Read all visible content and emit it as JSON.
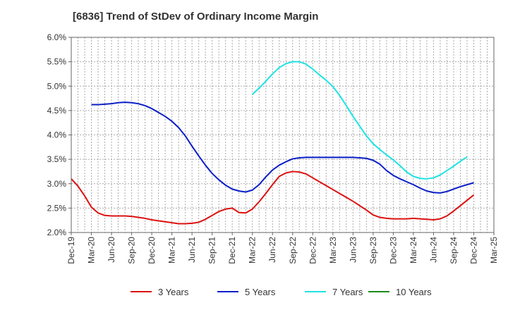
{
  "chart_data": {
    "type": "line",
    "title": "[6836]  Trend of StDev of Ordinary Income Margin",
    "xlabel": "",
    "ylabel": "",
    "ylim": [
      2.0,
      6.0
    ],
    "y_ticks": [
      2.0,
      2.5,
      3.0,
      3.5,
      4.0,
      4.5,
      5.0,
      5.5,
      6.0
    ],
    "y_tick_labels": [
      "2.0%",
      "2.5%",
      "3.0%",
      "3.5%",
      "4.0%",
      "4.5%",
      "5.0%",
      "5.5%",
      "6.0%"
    ],
    "x_tick_labels": [
      "Dec-19",
      "Mar-20",
      "Jun-20",
      "Sep-20",
      "Dec-20",
      "Mar-21",
      "Jun-21",
      "Sep-21",
      "Dec-21",
      "Mar-22",
      "Jun-22",
      "Sep-22",
      "Dec-22",
      "Mar-23",
      "Jun-23",
      "Sep-23",
      "Dec-23",
      "Mar-24",
      "Jun-24",
      "Sep-24",
      "Dec-24",
      "Mar-25"
    ],
    "grid": true,
    "legend_position": "bottom",
    "series": [
      {
        "name": "3 Years",
        "color": "#dd1111",
        "points": [
          [
            "Dec-19",
            3.1
          ],
          [
            "Jan-20",
            2.95
          ],
          [
            "Feb-20",
            2.75
          ],
          [
            "Mar-20",
            2.52
          ],
          [
            "Apr-20",
            2.4
          ],
          [
            "May-20",
            2.35
          ],
          [
            "Jun-20",
            2.34
          ],
          [
            "Jul-20",
            2.34
          ],
          [
            "Aug-20",
            2.34
          ],
          [
            "Sep-20",
            2.33
          ],
          [
            "Oct-20",
            2.31
          ],
          [
            "Nov-20",
            2.29
          ],
          [
            "Dec-20",
            2.26
          ],
          [
            "Jan-21",
            2.24
          ],
          [
            "Feb-21",
            2.22
          ],
          [
            "Mar-21",
            2.2
          ],
          [
            "Apr-21",
            2.18
          ],
          [
            "May-21",
            2.18
          ],
          [
            "Jun-21",
            2.19
          ],
          [
            "Jul-21",
            2.21
          ],
          [
            "Aug-21",
            2.27
          ],
          [
            "Sep-21",
            2.35
          ],
          [
            "Oct-21",
            2.43
          ],
          [
            "Nov-21",
            2.48
          ],
          [
            "Dec-21",
            2.5
          ],
          [
            "Jan-22",
            2.41
          ],
          [
            "Feb-22",
            2.4
          ],
          [
            "Mar-22",
            2.48
          ],
          [
            "Apr-22",
            2.63
          ],
          [
            "May-22",
            2.8
          ],
          [
            "Jun-22",
            2.98
          ],
          [
            "Jul-22",
            3.15
          ],
          [
            "Aug-22",
            3.22
          ],
          [
            "Sep-22",
            3.25
          ],
          [
            "Oct-22",
            3.24
          ],
          [
            "Nov-22",
            3.2
          ],
          [
            "Dec-22",
            3.12
          ],
          [
            "Jan-23",
            3.04
          ],
          [
            "Feb-23",
            2.96
          ],
          [
            "Mar-23",
            2.88
          ],
          [
            "Apr-23",
            2.8
          ],
          [
            "May-23",
            2.72
          ],
          [
            "Jun-23",
            2.64
          ],
          [
            "Jul-23",
            2.55
          ],
          [
            "Aug-23",
            2.46
          ],
          [
            "Sep-23",
            2.36
          ],
          [
            "Oct-23",
            2.31
          ],
          [
            "Nov-23",
            2.29
          ],
          [
            "Dec-23",
            2.28
          ],
          [
            "Jan-24",
            2.28
          ],
          [
            "Feb-24",
            2.28
          ],
          [
            "Mar-24",
            2.29
          ],
          [
            "Apr-24",
            2.28
          ],
          [
            "May-24",
            2.27
          ],
          [
            "Jun-24",
            2.26
          ],
          [
            "Jul-24",
            2.28
          ],
          [
            "Aug-24",
            2.34
          ],
          [
            "Sep-24",
            2.44
          ],
          [
            "Oct-24",
            2.55
          ],
          [
            "Nov-24",
            2.66
          ],
          [
            "Dec-24",
            2.77
          ]
        ]
      },
      {
        "name": "5 Years",
        "color": "#0a1ec8",
        "points": [
          [
            "Mar-20",
            4.62
          ],
          [
            "Apr-20",
            4.62
          ],
          [
            "May-20",
            4.63
          ],
          [
            "Jun-20",
            4.64
          ],
          [
            "Jul-20",
            4.66
          ],
          [
            "Aug-20",
            4.67
          ],
          [
            "Sep-20",
            4.66
          ],
          [
            "Oct-20",
            4.64
          ],
          [
            "Nov-20",
            4.6
          ],
          [
            "Dec-20",
            4.54
          ],
          [
            "Jan-21",
            4.46
          ],
          [
            "Feb-21",
            4.38
          ],
          [
            "Mar-21",
            4.28
          ],
          [
            "Apr-21",
            4.15
          ],
          [
            "May-21",
            3.98
          ],
          [
            "Jun-21",
            3.77
          ],
          [
            "Jul-21",
            3.57
          ],
          [
            "Aug-21",
            3.38
          ],
          [
            "Sep-21",
            3.21
          ],
          [
            "Oct-21",
            3.08
          ],
          [
            "Nov-21",
            2.97
          ],
          [
            "Dec-21",
            2.89
          ],
          [
            "Jan-22",
            2.85
          ],
          [
            "Feb-22",
            2.83
          ],
          [
            "Mar-22",
            2.87
          ],
          [
            "Apr-22",
            2.98
          ],
          [
            "May-22",
            3.14
          ],
          [
            "Jun-22",
            3.28
          ],
          [
            "Jul-22",
            3.38
          ],
          [
            "Aug-22",
            3.45
          ],
          [
            "Sep-22",
            3.51
          ],
          [
            "Oct-22",
            3.53
          ],
          [
            "Nov-22",
            3.54
          ],
          [
            "Dec-22",
            3.54
          ],
          [
            "Jan-23",
            3.54
          ],
          [
            "Feb-23",
            3.54
          ],
          [
            "Mar-23",
            3.54
          ],
          [
            "Apr-23",
            3.54
          ],
          [
            "May-23",
            3.54
          ],
          [
            "Jun-23",
            3.54
          ],
          [
            "Jul-23",
            3.53
          ],
          [
            "Aug-23",
            3.52
          ],
          [
            "Sep-23",
            3.48
          ],
          [
            "Oct-23",
            3.4
          ],
          [
            "Nov-23",
            3.27
          ],
          [
            "Dec-23",
            3.17
          ],
          [
            "Jan-24",
            3.1
          ],
          [
            "Feb-24",
            3.04
          ],
          [
            "Mar-24",
            2.98
          ],
          [
            "Apr-24",
            2.91
          ],
          [
            "May-24",
            2.85
          ],
          [
            "Jun-24",
            2.82
          ],
          [
            "Jul-24",
            2.81
          ],
          [
            "Aug-24",
            2.84
          ],
          [
            "Sep-24",
            2.89
          ],
          [
            "Oct-24",
            2.94
          ],
          [
            "Nov-24",
            2.98
          ],
          [
            "Dec-24",
            3.02
          ]
        ]
      },
      {
        "name": "7 Years",
        "color": "#1ee3e3",
        "points": [
          [
            "Mar-22",
            4.83
          ],
          [
            "Apr-22",
            4.96
          ],
          [
            "May-22",
            5.1
          ],
          [
            "Jun-22",
            5.25
          ],
          [
            "Jul-22",
            5.38
          ],
          [
            "Aug-22",
            5.46
          ],
          [
            "Sep-22",
            5.5
          ],
          [
            "Oct-22",
            5.5
          ],
          [
            "Nov-22",
            5.45
          ],
          [
            "Dec-22",
            5.35
          ],
          [
            "Jan-23",
            5.23
          ],
          [
            "Feb-23",
            5.12
          ],
          [
            "Mar-23",
            4.99
          ],
          [
            "Apr-23",
            4.81
          ],
          [
            "May-23",
            4.6
          ],
          [
            "Jun-23",
            4.38
          ],
          [
            "Jul-23",
            4.18
          ],
          [
            "Aug-23",
            3.98
          ],
          [
            "Sep-23",
            3.82
          ],
          [
            "Oct-23",
            3.7
          ],
          [
            "Nov-23",
            3.59
          ],
          [
            "Dec-23",
            3.49
          ],
          [
            "Jan-24",
            3.37
          ],
          [
            "Feb-24",
            3.24
          ],
          [
            "Mar-24",
            3.15
          ],
          [
            "Apr-24",
            3.11
          ],
          [
            "May-24",
            3.1
          ],
          [
            "Jun-24",
            3.12
          ],
          [
            "Jul-24",
            3.18
          ],
          [
            "Aug-24",
            3.27
          ],
          [
            "Sep-24",
            3.36
          ],
          [
            "Oct-24",
            3.46
          ],
          [
            "Nov-24",
            3.55
          ]
        ]
      },
      {
        "name": "10 Years",
        "color": "#1a8a1a",
        "points": []
      }
    ]
  }
}
